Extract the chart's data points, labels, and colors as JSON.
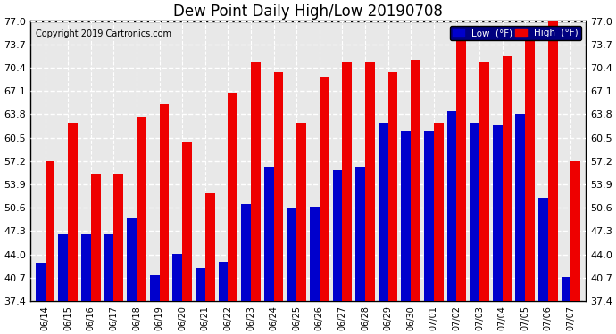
{
  "title": "Dew Point Daily High/Low 20190708",
  "copyright": "Copyright 2019 Cartronics.com",
  "background_color": "#ffffff",
  "plot_background": "#e8e8e8",
  "dates": [
    "06/14",
    "06/15",
    "06/16",
    "06/17",
    "06/18",
    "06/19",
    "06/20",
    "06/21",
    "06/22",
    "06/23",
    "06/24",
    "06/25",
    "06/26",
    "06/27",
    "06/28",
    "06/29",
    "06/30",
    "07/01",
    "07/02",
    "07/03",
    "07/04",
    "07/05",
    "07/06",
    "07/07"
  ],
  "low_values": [
    42.8,
    46.9,
    46.9,
    46.9,
    49.1,
    41.0,
    44.1,
    42.1,
    43.0,
    51.1,
    56.3,
    50.5,
    50.7,
    55.9,
    56.3,
    62.6,
    61.5,
    61.5,
    64.2,
    62.6,
    62.4,
    63.8,
    52.0,
    40.8
  ],
  "high_values": [
    57.2,
    62.6,
    55.4,
    55.4,
    63.5,
    65.3,
    59.9,
    52.7,
    66.9,
    71.2,
    69.8,
    62.6,
    69.1,
    71.2,
    71.2,
    69.8,
    71.6,
    62.6,
    75.2,
    71.2,
    72.1,
    75.0,
    77.0,
    57.2
  ],
  "low_color": "#0000cc",
  "high_color": "#ee0000",
  "yticks": [
    37.4,
    40.7,
    44.0,
    47.3,
    50.6,
    53.9,
    57.2,
    60.5,
    63.8,
    67.1,
    70.4,
    73.7,
    77.0
  ],
  "ymin": 37.4,
  "ymax": 77.0,
  "legend_low_label": "Low  (°F)",
  "legend_high_label": "High  (°F)",
  "title_fontsize": 12,
  "copyright_fontsize": 7,
  "tick_fontsize": 8,
  "bar_bottom": 37.4
}
